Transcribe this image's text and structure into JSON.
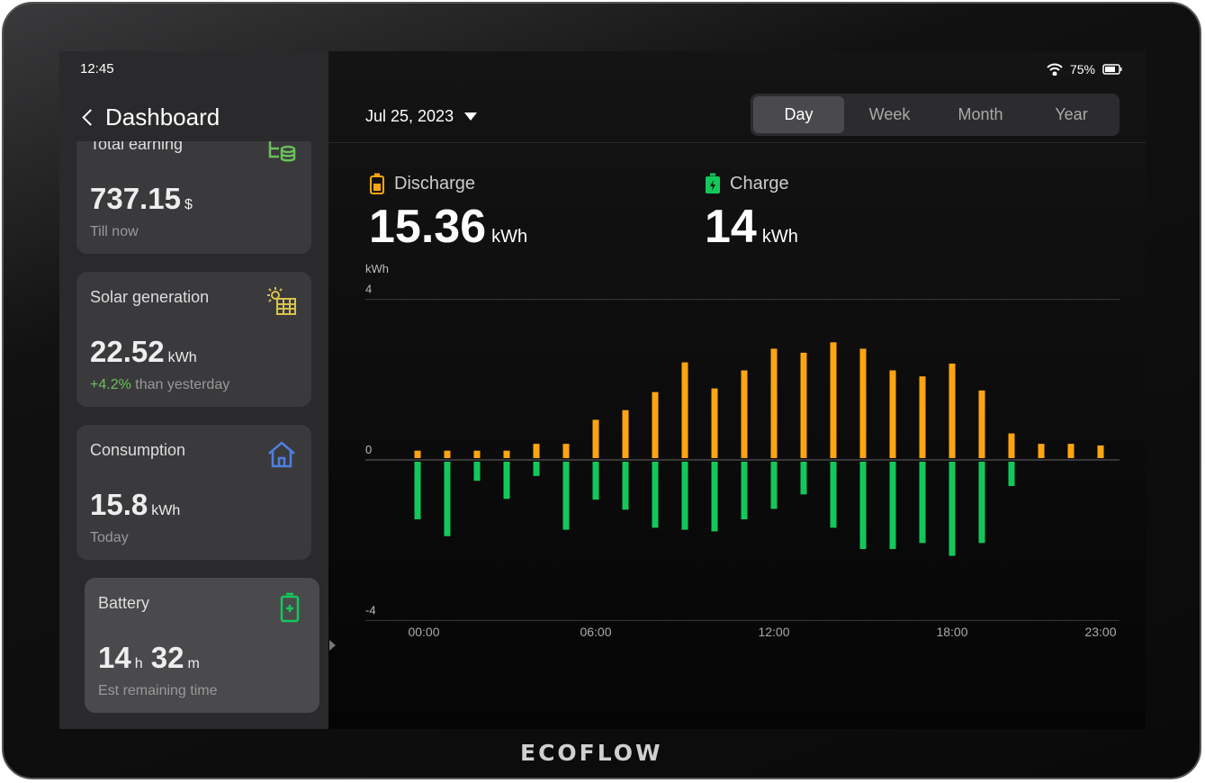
{
  "status_bar": {
    "time": "12:45",
    "battery": "75%"
  },
  "header": {
    "back_title": "Dashboard",
    "date": "Jul 25, 2023",
    "tabs": [
      {
        "label": "Day",
        "active": true
      },
      {
        "label": "Week"
      },
      {
        "label": "Month"
      },
      {
        "label": "Year"
      }
    ]
  },
  "cards": [
    {
      "title": "Total earning",
      "value": "737.15",
      "unit": "$",
      "sub": "Till now",
      "icon": "coins-icon"
    },
    {
      "title": "Solar generation",
      "value": "22.52",
      "unit": "kWh",
      "sub_delta": "+4.2%",
      "sub": " than yesterday",
      "icon": "solar-panel-icon"
    },
    {
      "title": "Consumption",
      "value": "15.8",
      "unit": "kWh",
      "sub": "Today",
      "icon": "home-icon"
    },
    {
      "title": "Battery",
      "value_h": "14",
      "unit_h": "h",
      "value_m": "32",
      "unit_m": "m",
      "sub": "Est remaining time",
      "icon": "battery-icon"
    }
  ],
  "summary": {
    "discharge": {
      "label": "Discharge",
      "value": "15.36",
      "unit": "kWh"
    },
    "charge": {
      "label": "Charge",
      "value": "14",
      "unit": "kWh"
    }
  },
  "colors": {
    "discharge": "#FFA50F",
    "charge": "#12C85A",
    "accent_green": "#6ABF5A"
  },
  "brand": "ECOFLOW",
  "chart_data": {
    "type": "bar",
    "ylabel": "kWh",
    "ylim": [
      -4,
      4
    ],
    "yticks": [
      "4",
      "0",
      "-4"
    ],
    "xticks": [
      "00:00",
      "06:00",
      "12:00",
      "18:00",
      "23:00"
    ],
    "categories": [
      "00:00",
      "01:00",
      "02:00",
      "03:00",
      "04:00",
      "05:00",
      "06:00",
      "07:00",
      "08:00",
      "09:00",
      "10:00",
      "11:00",
      "12:00",
      "13:00",
      "14:00",
      "15:00",
      "16:00",
      "17:00",
      "18:00",
      "19:00",
      "20:00",
      "21:00",
      "22:00",
      "23:00"
    ],
    "series": [
      {
        "name": "Discharge",
        "values": [
          0.23,
          0.23,
          0.23,
          0.23,
          0.4,
          0.4,
          1.0,
          1.24,
          1.69,
          2.43,
          1.78,
          2.23,
          2.77,
          2.67,
          2.93,
          2.77,
          2.23,
          2.08,
          2.4,
          1.73,
          0.66,
          0.4,
          0.4,
          0.36
        ]
      },
      {
        "name": "Charge",
        "values": [
          -1.48,
          -1.9,
          -0.52,
          -0.97,
          -0.4,
          -1.74,
          -0.99,
          -1.24,
          -1.69,
          -1.74,
          -1.78,
          -1.48,
          -1.22,
          -0.86,
          -1.69,
          -2.22,
          -2.22,
          -2.07,
          -2.39,
          -2.07,
          -0.65,
          0,
          0,
          0
        ]
      }
    ]
  }
}
